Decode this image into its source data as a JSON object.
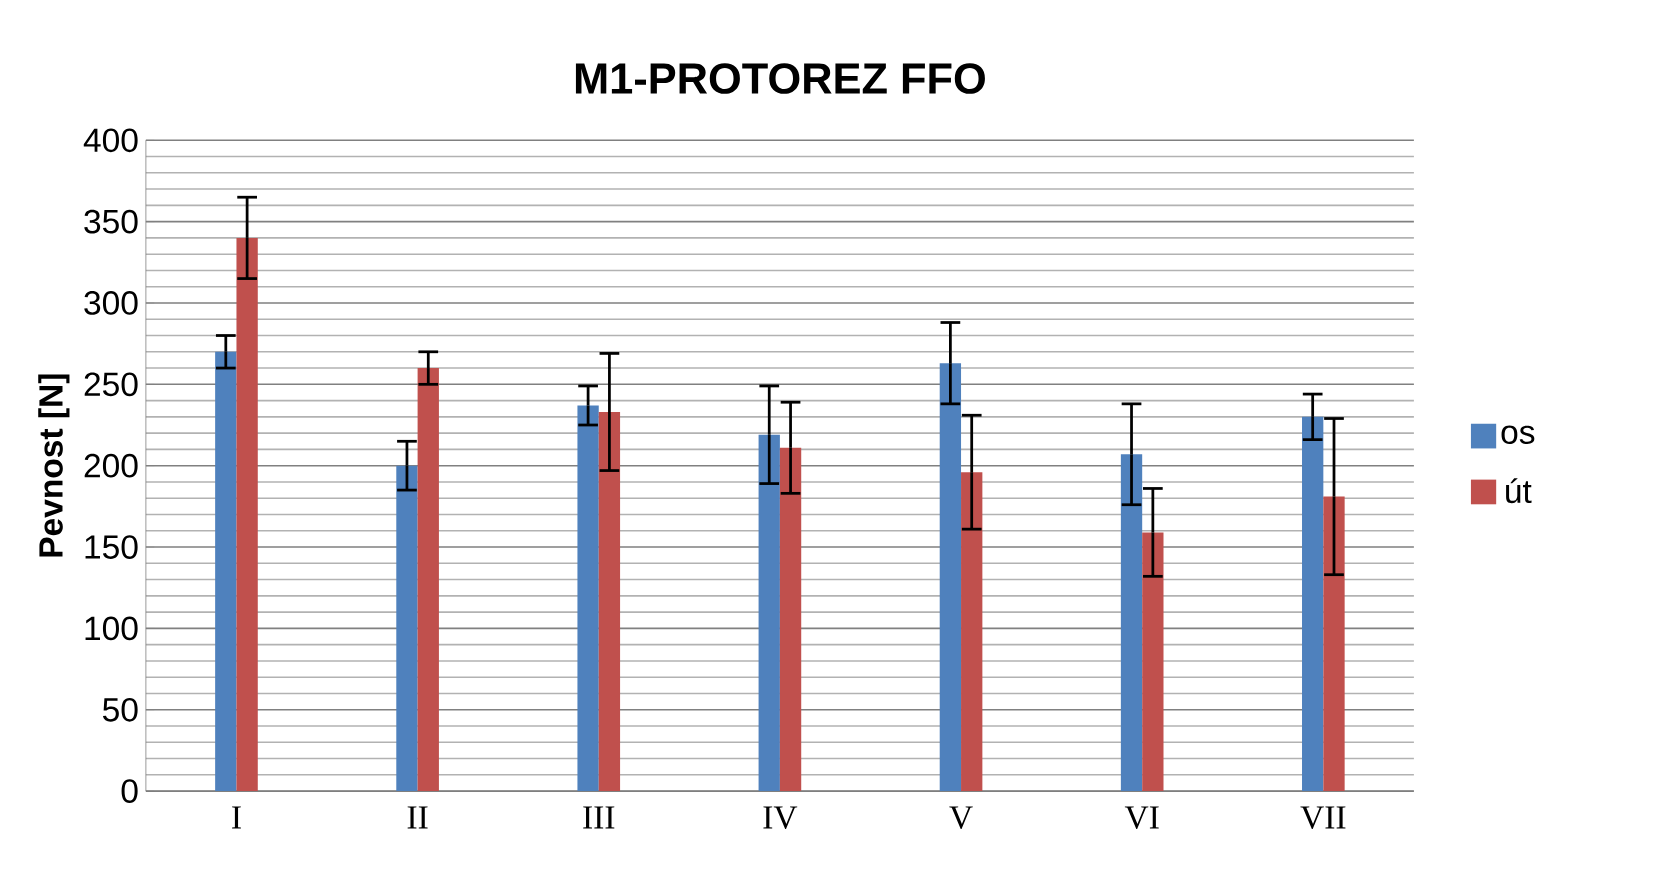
{
  "chart_data": {
    "type": "bar",
    "title": "M1-PROTOREZ FFO",
    "ylabel": "Pevnost [N]",
    "categories": [
      "I",
      "II",
      "III",
      "IV",
      "V",
      "VI",
      "VII"
    ],
    "series": [
      {
        "name": "os",
        "color": "#4f81bd",
        "values": [
          270,
          200,
          237,
          219,
          263,
          207,
          230
        ],
        "errors": [
          10,
          15,
          12,
          30,
          25,
          31,
          14
        ]
      },
      {
        "name": "út",
        "color": "#c0504d",
        "values": [
          340,
          260,
          233,
          211,
          196,
          159,
          181
        ],
        "errors": [
          25,
          10,
          36,
          28,
          35,
          27,
          48
        ]
      }
    ],
    "ylim": [
      0,
      400
    ],
    "yticks": [
      0,
      50,
      100,
      150,
      200,
      250,
      300,
      350,
      400
    ],
    "grid": "y",
    "legend": "right"
  }
}
